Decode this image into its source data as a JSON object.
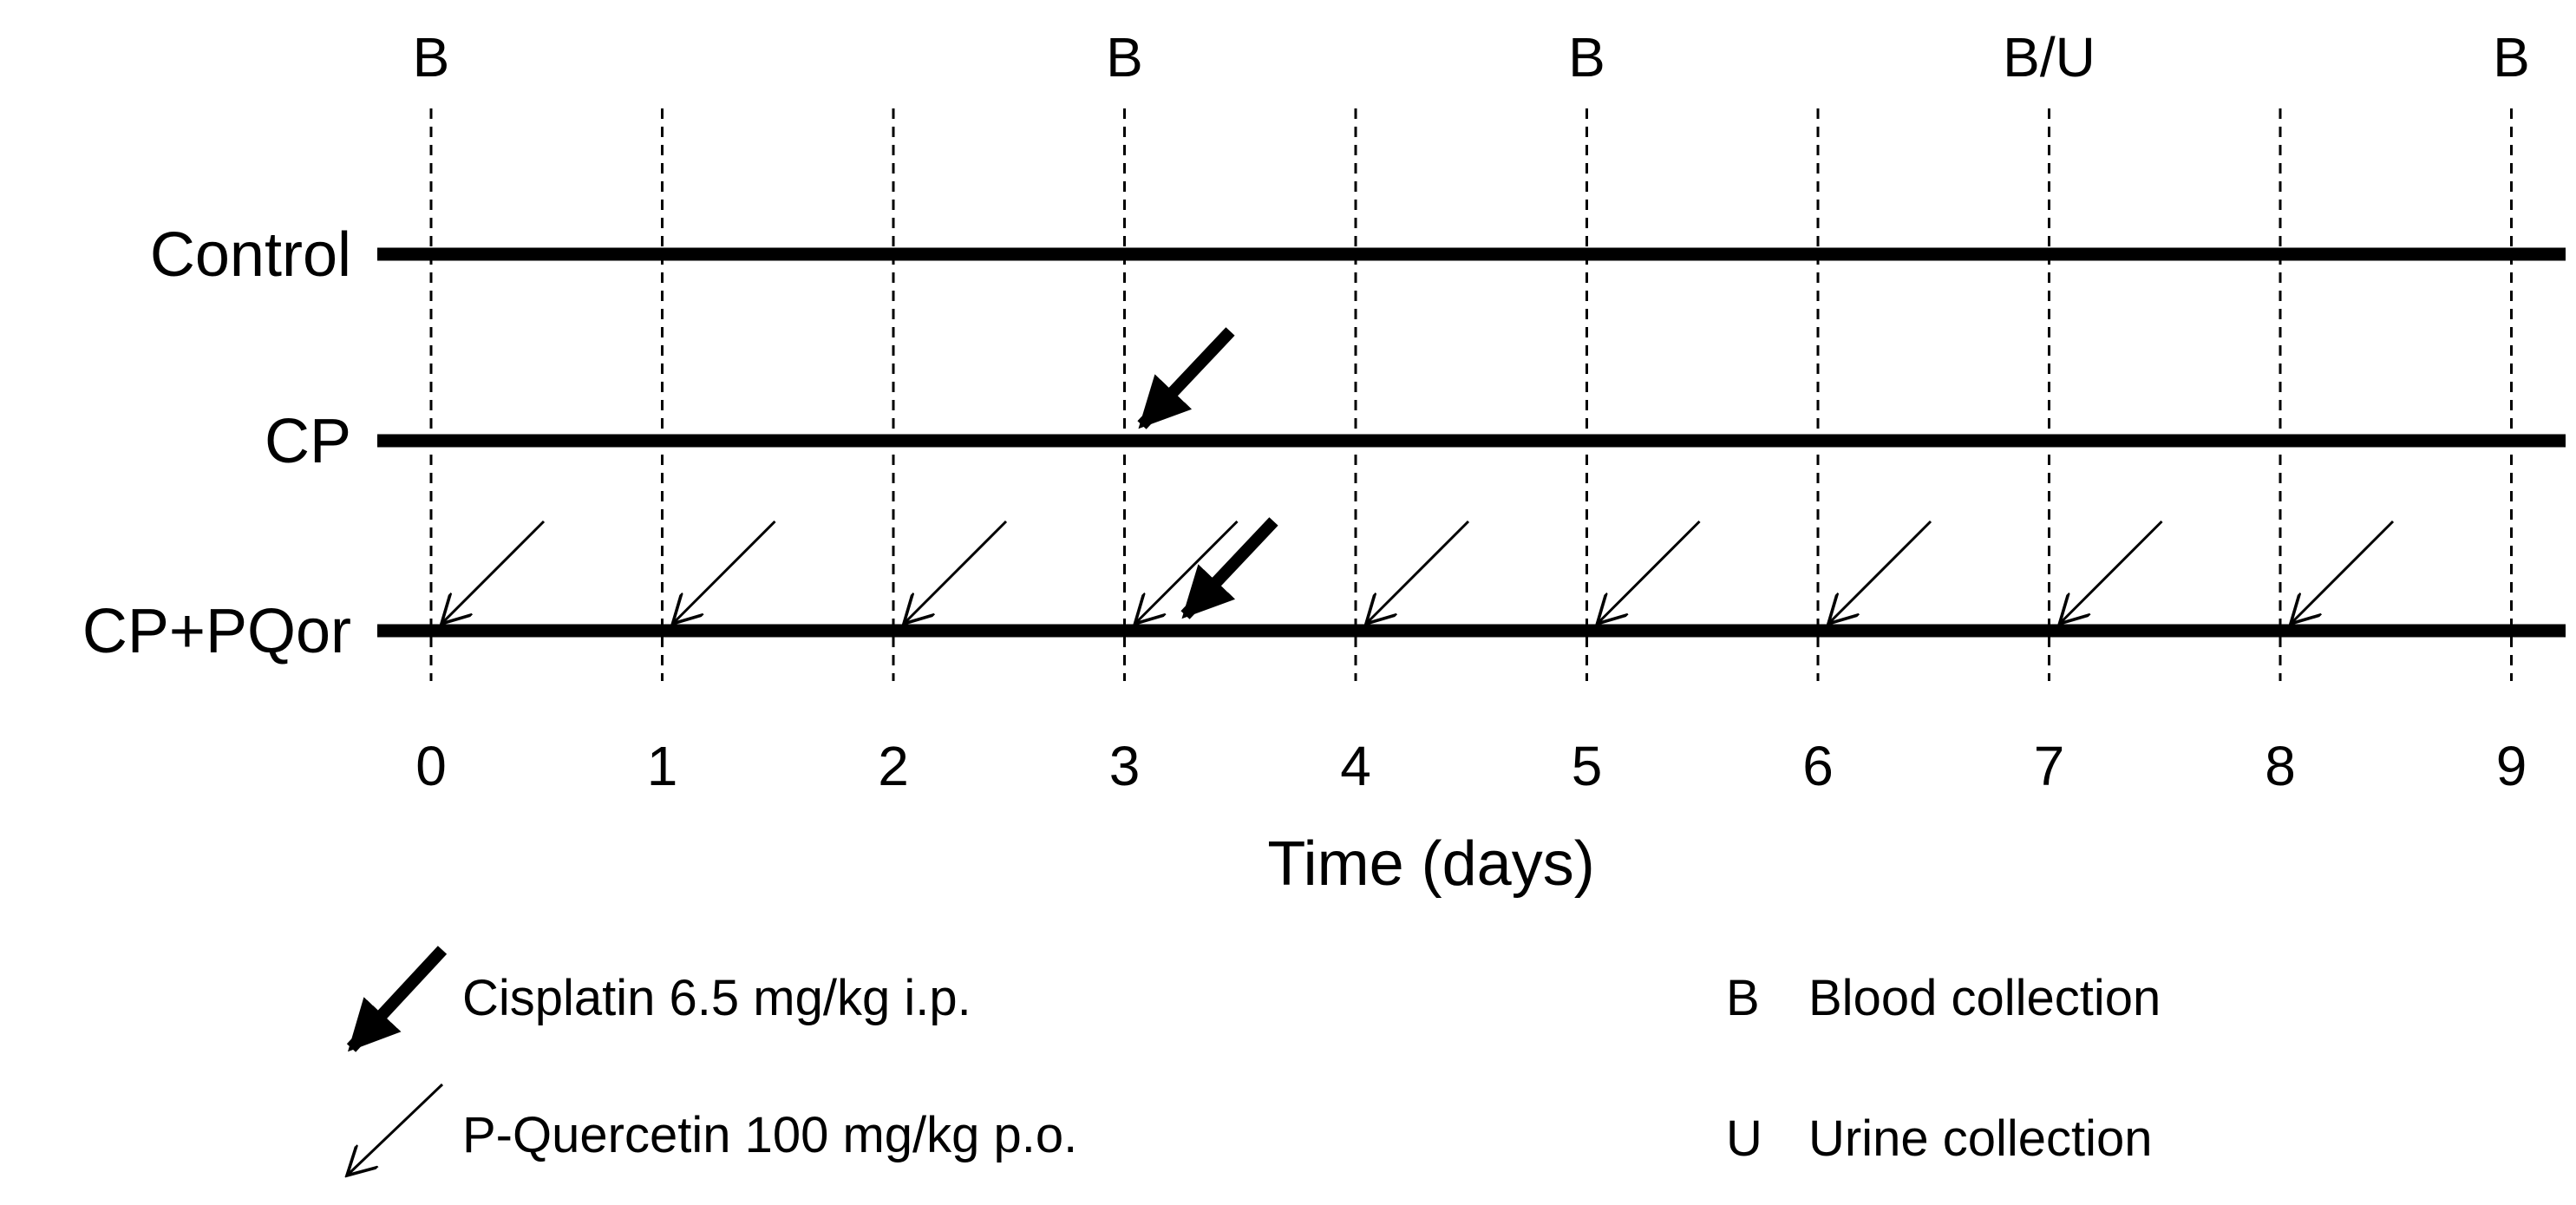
{
  "colors": {
    "ink": "#000000",
    "background": "#ffffff"
  },
  "timeline": {
    "days": [
      "0",
      "1",
      "2",
      "3",
      "4",
      "5",
      "6",
      "7",
      "8",
      "9"
    ],
    "axis_label": "Time (days)",
    "collection_labels": [
      {
        "day": 0,
        "text": "B"
      },
      {
        "day": 3,
        "text": "B"
      },
      {
        "day": 5,
        "text": "B"
      },
      {
        "day": 7,
        "text": "B/U"
      },
      {
        "day": 9,
        "text": "B"
      }
    ]
  },
  "groups": [
    {
      "label": "Control",
      "cisplatin_days": [],
      "quercetin_days": []
    },
    {
      "label": "CP",
      "cisplatin_days": [
        3
      ],
      "quercetin_days": []
    },
    {
      "label": "CP+PQor",
      "cisplatin_days": [
        3
      ],
      "quercetin_days": [
        0,
        1,
        2,
        3,
        4,
        5,
        6,
        7,
        8
      ]
    }
  ],
  "legend": {
    "cisplatin": {
      "icon": "thick-arrow-icon",
      "text": "Cisplatin 6.5 mg/kg i.p."
    },
    "quercetin": {
      "icon": "thin-arrow-icon",
      "text": "P-Quercetin 100 mg/kg p.o."
    },
    "blood": {
      "key": "B",
      "text": "Blood collection"
    },
    "urine": {
      "key": "U",
      "text": "Urine collection"
    }
  }
}
